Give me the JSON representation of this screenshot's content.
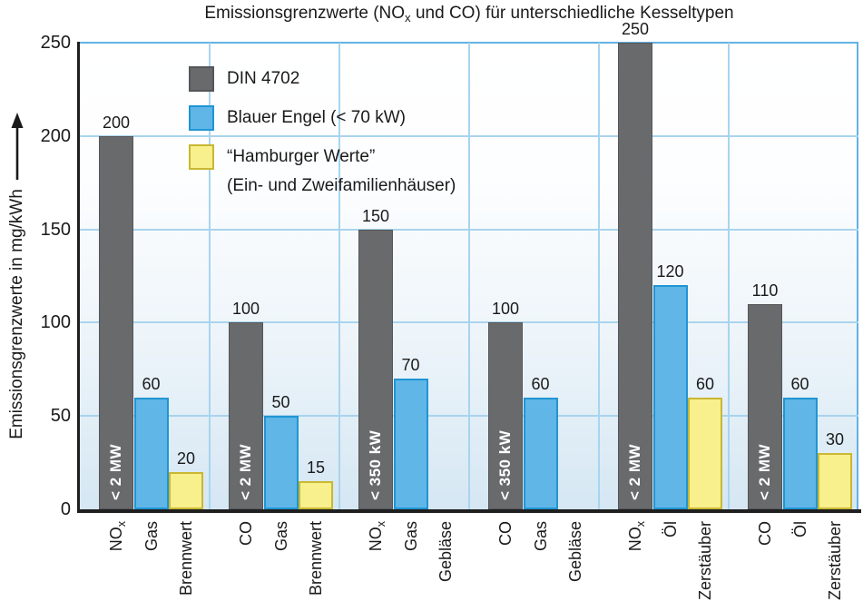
{
  "title_parts": {
    "part1": "Emissionsgrenzwerte (NO",
    "sub": "x",
    "part2": " und CO) für unterschiedliche Kesseltypen"
  },
  "colors": {
    "text": "#1a1a1a",
    "grid": "#a8d4ee",
    "grid_strong": "#62b2e3",
    "axis": "#1f1f1f",
    "plot_gradient_top": "#ffffff",
    "plot_gradient_bottom": "#d5e7f3"
  },
  "chart_data": {
    "type": "bar",
    "title": "Emissionsgrenzwerte (NOx und CO) für unterschiedliche Kesseltypen",
    "ylabel": "Emissionsgrenzwerte in mg/kWh",
    "ylim": [
      0,
      250
    ],
    "yticks": [
      0,
      50,
      100,
      150,
      200,
      250
    ],
    "grid": "on",
    "legend_position": "upper-left-inside",
    "legend": [
      {
        "label": "DIN 4702",
        "color": "#696a6c",
        "border": "#55565a"
      },
      {
        "label": "Blauer Engel (< 70 kW)",
        "color": "#5fb6e7",
        "border": "#2095d3"
      },
      {
        "label": "“Hamburger Werte”",
        "label_line2": "(Ein- und Zweifamilienhäuser)",
        "color": "#f8ef8d",
        "border": "#c9b832"
      }
    ],
    "groups": [
      {
        "bars": [
          {
            "category": "NO",
            "category_sub": "x",
            "value": 200,
            "series": 0,
            "inner_label": "< 2 MW"
          },
          {
            "category": "Gas",
            "value": 60,
            "series": 1
          },
          {
            "category": "Brennwert",
            "value": 20,
            "series": 2
          }
        ]
      },
      {
        "bars": [
          {
            "category": "CO",
            "value": 100,
            "series": 0,
            "inner_label": "< 2 MW"
          },
          {
            "category": "Gas",
            "value": 50,
            "series": 1
          },
          {
            "category": "Brennwert",
            "value": 15,
            "series": 2
          }
        ]
      },
      {
        "bars": [
          {
            "category": "NO",
            "category_sub": "x",
            "value": 150,
            "series": 0,
            "inner_label": "< 350 kW"
          },
          {
            "category": "Gas",
            "value": 70,
            "series": 1
          },
          {
            "category": "Gebläse",
            "value": null,
            "series": 2
          }
        ]
      },
      {
        "bars": [
          {
            "category": "CO",
            "value": 100,
            "series": 0,
            "inner_label": "< 350 kW"
          },
          {
            "category": "Gas",
            "value": 60,
            "series": 1
          },
          {
            "category": "Gebläse",
            "value": null,
            "series": 2
          }
        ]
      },
      {
        "bars": [
          {
            "category": "NO",
            "category_sub": "x",
            "value": 250,
            "series": 0,
            "inner_label": "< 2 MW"
          },
          {
            "category": "Öl",
            "value": 120,
            "series": 1
          },
          {
            "category": "Zerstäuber",
            "value": 60,
            "series": 2
          }
        ]
      },
      {
        "bars": [
          {
            "category": "CO",
            "value": 110,
            "series": 0,
            "inner_label": "< 2 MW"
          },
          {
            "category": "Öl",
            "value": 60,
            "series": 1
          },
          {
            "category": "Zerstäuber",
            "value": 30,
            "series": 2
          }
        ]
      }
    ]
  }
}
